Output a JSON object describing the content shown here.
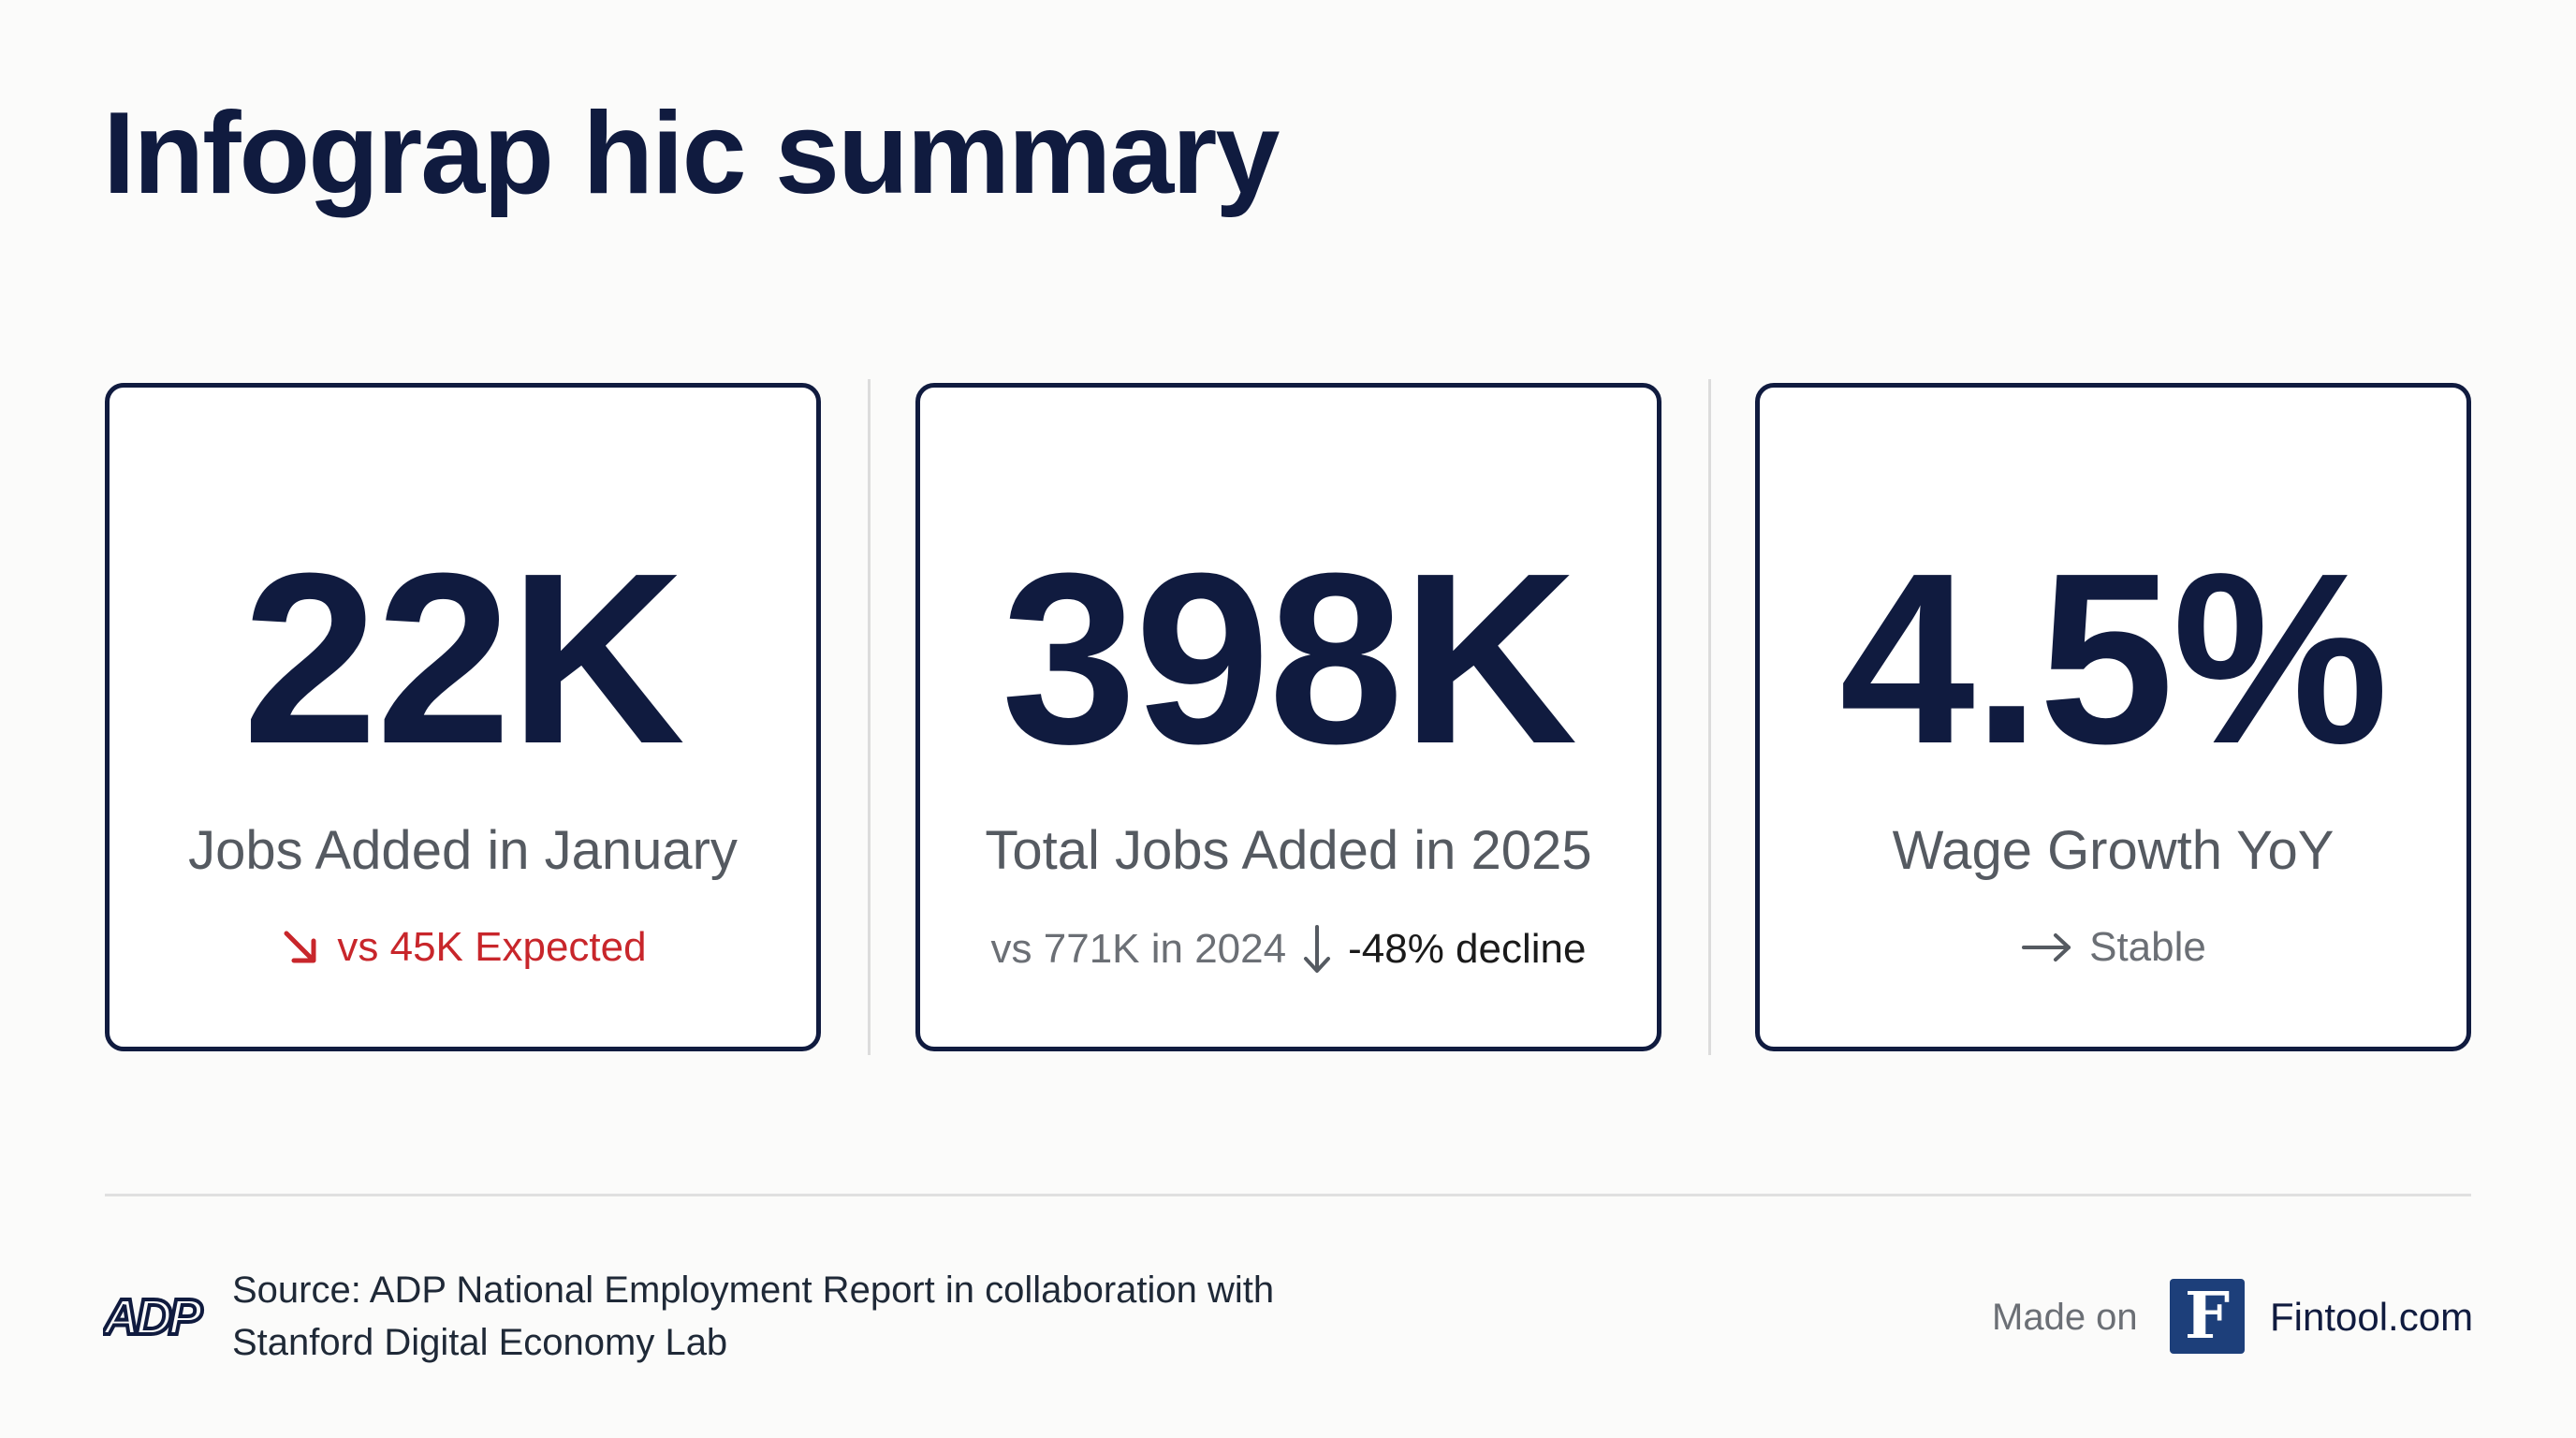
{
  "title": "Infograp hic summary",
  "cards": [
    {
      "value": "22K",
      "label": "Jobs Added in January",
      "note": "vs 45K Expected",
      "note_icon": "arrow-down-right-icon",
      "note_color": "#c8262b"
    },
    {
      "value": "398K",
      "label": "Total Jobs Added in 2025",
      "note_prefix": "vs 771K in 2024",
      "note": "-48% decline",
      "note_icon": "arrow-down-icon"
    },
    {
      "value": "4.5%",
      "label": "Wage Growth YoY",
      "note": "Stable",
      "note_icon": "arrow-right-icon"
    }
  ],
  "footer": {
    "source_line1": "Source: ADP National Employment Report in collaboration with",
    "source_line2": "Stanford Digital Economy Lab",
    "source_logo": "ADP",
    "made_on": "Made on",
    "brand_logo_letter": "F",
    "brand_name": "Fintool.com"
  },
  "colors": {
    "navy": "#101b3f",
    "red": "#c8262b",
    "brand_blue": "#1d3f7a",
    "background": "#fbfbfa"
  }
}
